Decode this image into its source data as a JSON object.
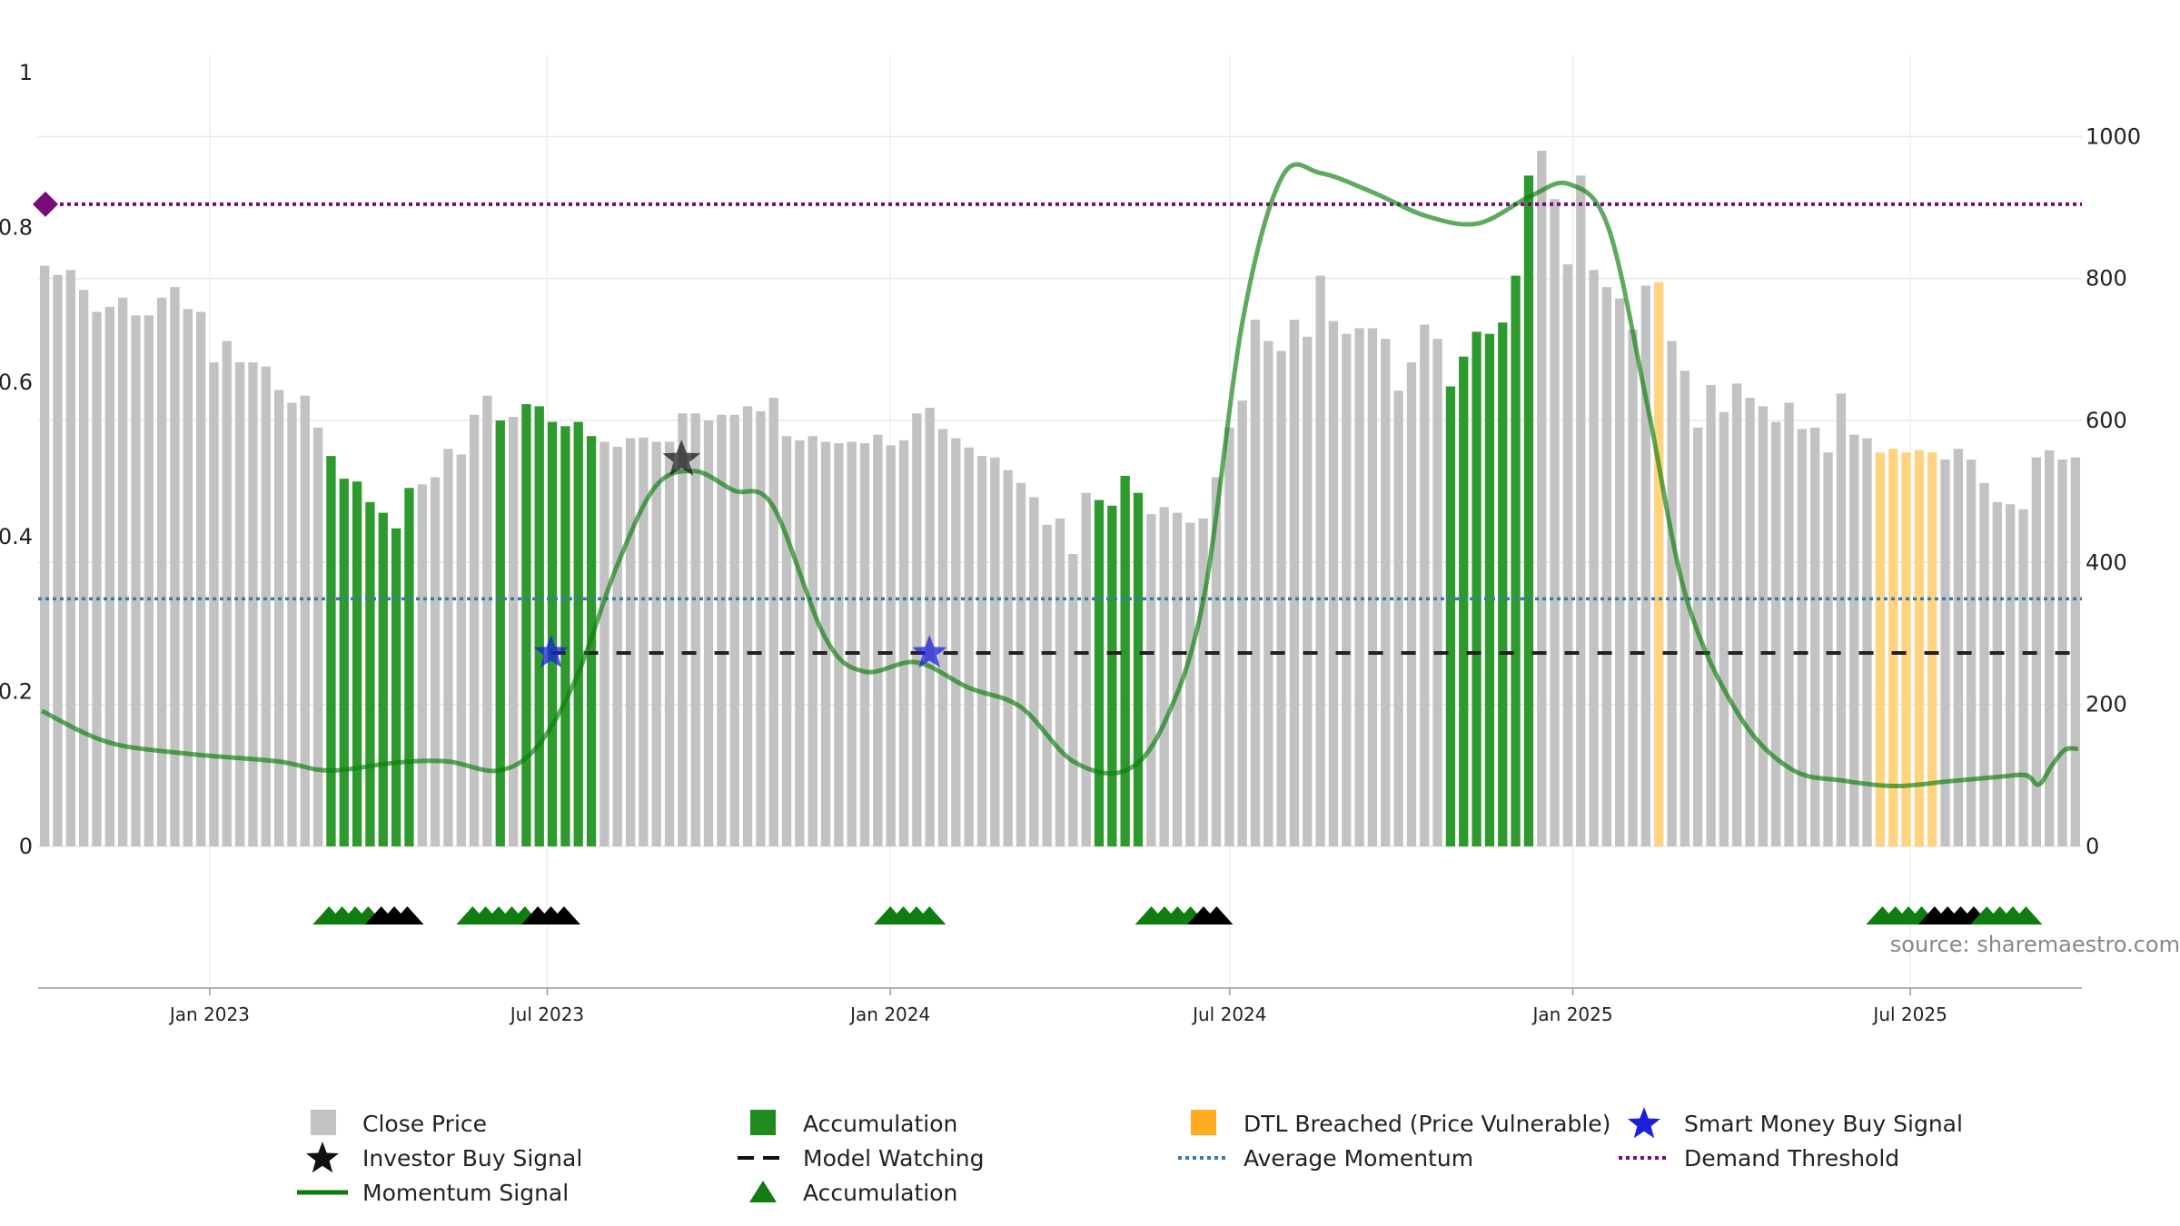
{
  "chart_data": {
    "type": "bar",
    "source_text": "source: sharemaestro.com",
    "left_axis": {
      "ticks": [
        0,
        0.2,
        0.4,
        0.6,
        0.8,
        1
      ],
      "tick_labels": [
        "0",
        "0.2",
        "0.4",
        "0.6",
        "0.8",
        "1"
      ],
      "range": [
        0,
        1
      ]
    },
    "right_axis": {
      "ticks": [
        0,
        200,
        400,
        600,
        800,
        1000
      ],
      "tick_labels": [
        "0",
        "200",
        "400",
        "600",
        "800",
        "1000"
      ],
      "range": [
        0,
        1090
      ]
    },
    "x_axis": {
      "start_date": "2022-10-01",
      "end_date": "2025-10-01",
      "date_labels": [
        {
          "date": "2023-01-01",
          "label": "Jan 2023"
        },
        {
          "date": "2023-07-01",
          "label": "Jul 2023"
        },
        {
          "date": "2024-01-01",
          "label": "Jan 2024"
        },
        {
          "date": "2024-07-01",
          "label": "Jul 2024"
        },
        {
          "date": "2025-01-01",
          "label": "Jan 2025"
        },
        {
          "date": "2025-07-01",
          "label": "Jul 2025"
        }
      ]
    },
    "colors": {
      "close_price": "#c2c2c2",
      "accumulation": "#2e9a2e",
      "dtl_breached": "#ffd37f",
      "momentum": "#0a7d0a",
      "average_momentum": "#3a7aa8",
      "demand_threshold": "#7a0a7a",
      "model_watching": "#222222",
      "smart_money": "#1a22d8",
      "investor_buy": "#111111",
      "accum_triangle": "#0f7d0f"
    },
    "close_price": [
      818,
      805,
      812,
      784,
      753,
      760,
      773,
      748,
      748,
      773,
      788,
      757,
      753,
      682,
      712,
      682,
      682,
      676,
      643,
      625,
      635,
      590,
      550,
      518,
      514,
      485,
      470,
      448,
      505,
      510,
      520,
      560,
      552,
      608,
      635,
      600,
      605,
      623,
      620,
      598,
      592,
      598,
      578,
      570,
      563,
      575,
      576,
      570,
      570,
      610,
      610,
      600,
      608,
      608,
      620,
      613,
      632,
      578,
      572,
      578,
      570,
      568,
      570,
      568,
      580,
      565,
      572,
      610,
      618,
      588,
      575,
      562,
      550,
      548,
      530,
      512,
      492,
      453,
      462,
      412,
      498,
      488,
      480,
      522,
      498,
      468,
      478,
      470,
      456,
      462,
      520,
      590,
      628,
      742,
      712,
      698,
      742,
      718,
      804,
      740,
      722,
      730,
      730,
      715,
      642,
      682,
      735,
      715,
      648,
      690,
      725,
      722,
      738,
      804,
      945,
      980,
      912,
      820,
      945,
      812,
      788,
      772,
      728,
      790,
      795,
      712,
      670,
      590,
      650,
      612,
      652,
      632,
      620,
      598,
      625,
      588,
      590,
      555,
      638,
      580,
      575,
      555,
      560,
      555,
      558,
      555,
      545,
      560,
      545,
      512,
      485,
      482,
      475,
      548,
      558,
      545,
      548
    ],
    "bar_classes": "GGGGGGGGGGGGGGGGGGGGGGAAAAAAAGGGGGGAGAAAAAAGGGGGGGGGGGGGGGGGGGGGGGGGGGGGGGGGGGGGGAAAAGGGGGGGGGGGGGGGGGGGGGGGAAAAAAAGGGGGGGGGDGGGGGGGGGGGGGGGGDDDDDGGGGGGGGGGGGGGGGGGGGGGGGGGGAAAAAAAAAAGAAA",
    "momentum": [
      0.175,
      0.155,
      0.143,
      0.133,
      0.127,
      0.123,
      0.12,
      0.118,
      0.116,
      0.114,
      0.112,
      0.11,
      0.108,
      0.104,
      0.1,
      0.098,
      0.098,
      0.098,
      0.099,
      0.101,
      0.103,
      0.105,
      0.107,
      0.109,
      0.11,
      0.11,
      0.109,
      0.106,
      0.102,
      0.098,
      0.096,
      0.1,
      0.108,
      0.118,
      0.13,
      0.15,
      0.18,
      0.22,
      0.26,
      0.3,
      0.34,
      0.385,
      0.425,
      0.46,
      0.48,
      0.485,
      0.485,
      0.48,
      0.47,
      0.46,
      0.456,
      0.452,
      0.44,
      0.41,
      0.37,
      0.32,
      0.27,
      0.24,
      0.225,
      0.222,
      0.226,
      0.23,
      0.232,
      0.236,
      0.238,
      0.231,
      0.218,
      0.21,
      0.205,
      0.2,
      0.195,
      0.188,
      0.175,
      0.155,
      0.13,
      0.11,
      0.1,
      0.097,
      0.097,
      0.1,
      0.11,
      0.13,
      0.16,
      0.2,
      0.25,
      0.32,
      0.42,
      0.52,
      0.6,
      0.68,
      0.76,
      0.83,
      0.865,
      0.875,
      0.87,
      0.862,
      0.852,
      0.845,
      0.838,
      0.832,
      0.825,
      0.815,
      0.805,
      0.805,
      0.815,
      0.825,
      0.84,
      0.85,
      0.856,
      0.848,
      0.828,
      0.8,
      0.75,
      0.67,
      0.57,
      0.47,
      0.39,
      0.32,
      0.26,
      0.21,
      0.17,
      0.14,
      0.12,
      0.107,
      0.1,
      0.095,
      0.09,
      0.085,
      0.08,
      0.078,
      0.077,
      0.078,
      0.08,
      0.082,
      0.084,
      0.085,
      0.087,
      0.089,
      0.09,
      0.091,
      0.092,
      0.08,
      0.105,
      0.118,
      0.125,
      0.128,
      0.126
    ],
    "momentum_points": [
      {
        "date": "2022-10-03",
        "value": 0.175
      },
      {
        "date": "2022-11-07",
        "value": 0.135
      },
      {
        "date": "2022-12-19",
        "value": 0.12
      },
      {
        "date": "2023-02-06",
        "value": 0.11
      },
      {
        "date": "2023-03-06",
        "value": 0.098
      },
      {
        "date": "2023-04-10",
        "value": 0.108
      },
      {
        "date": "2023-05-08",
        "value": 0.11
      },
      {
        "date": "2023-06-05",
        "value": 0.098
      },
      {
        "date": "2023-06-26",
        "value": 0.13
      },
      {
        "date": "2023-07-17",
        "value": 0.22
      },
      {
        "date": "2023-08-07",
        "value": 0.36
      },
      {
        "date": "2023-08-28",
        "value": 0.465
      },
      {
        "date": "2023-09-18",
        "value": 0.485
      },
      {
        "date": "2023-10-09",
        "value": 0.46
      },
      {
        "date": "2023-10-30",
        "value": 0.44
      },
      {
        "date": "2023-11-27",
        "value": 0.27
      },
      {
        "date": "2023-12-18",
        "value": 0.226
      },
      {
        "date": "2024-01-15",
        "value": 0.238
      },
      {
        "date": "2024-02-12",
        "value": 0.205
      },
      {
        "date": "2024-03-11",
        "value": 0.18
      },
      {
        "date": "2024-04-08",
        "value": 0.11
      },
      {
        "date": "2024-05-06",
        "value": 0.098
      },
      {
        "date": "2024-05-27",
        "value": 0.16
      },
      {
        "date": "2024-06-17",
        "value": 0.32
      },
      {
        "date": "2024-07-08",
        "value": 0.68
      },
      {
        "date": "2024-07-29",
        "value": 0.865
      },
      {
        "date": "2024-08-19",
        "value": 0.87
      },
      {
        "date": "2024-09-16",
        "value": 0.845
      },
      {
        "date": "2024-10-14",
        "value": 0.815
      },
      {
        "date": "2024-11-11",
        "value": 0.805
      },
      {
        "date": "2024-12-09",
        "value": 0.84
      },
      {
        "date": "2024-12-30",
        "value": 0.856
      },
      {
        "date": "2025-01-20",
        "value": 0.8
      },
      {
        "date": "2025-02-10",
        "value": 0.57
      },
      {
        "date": "2025-03-03",
        "value": 0.32
      },
      {
        "date": "2025-03-31",
        "value": 0.17
      },
      {
        "date": "2025-04-28",
        "value": 0.1
      },
      {
        "date": "2025-05-26",
        "value": 0.085
      },
      {
        "date": "2025-06-23",
        "value": 0.078
      },
      {
        "date": "2025-07-21",
        "value": 0.084
      },
      {
        "date": "2025-08-18",
        "value": 0.09
      },
      {
        "date": "2025-09-01",
        "value": 0.092
      },
      {
        "date": "2025-09-08",
        "value": 0.08
      },
      {
        "date": "2025-09-15",
        "value": 0.105
      },
      {
        "date": "2025-09-22",
        "value": 0.125
      },
      {
        "date": "2025-09-29",
        "value": 0.126
      }
    ],
    "average_momentum": 0.32,
    "demand_threshold": 0.83,
    "model_watching": {
      "value": 0.25,
      "start_date": "2023-07-03",
      "end_date": "2025-09-29"
    },
    "smart_money_signals": [
      {
        "date": "2023-07-03",
        "value": 0.25
      },
      {
        "date": "2024-01-22",
        "value": 0.25
      }
    ],
    "investor_buy_signals": [
      {
        "date": "2023-09-11",
        "value": 0.5
      }
    ],
    "triangle_markers": [
      {
        "date": "2023-03-06",
        "color": "green"
      },
      {
        "date": "2023-03-13",
        "color": "green"
      },
      {
        "date": "2023-03-20",
        "color": "green"
      },
      {
        "date": "2023-03-27",
        "color": "green"
      },
      {
        "date": "2023-04-03",
        "color": "black"
      },
      {
        "date": "2023-04-10",
        "color": "black"
      },
      {
        "date": "2023-04-17",
        "color": "black"
      },
      {
        "date": "2023-05-22",
        "color": "green"
      },
      {
        "date": "2023-05-29",
        "color": "green"
      },
      {
        "date": "2023-06-05",
        "color": "green"
      },
      {
        "date": "2023-06-12",
        "color": "green"
      },
      {
        "date": "2023-06-19",
        "color": "green"
      },
      {
        "date": "2023-06-26",
        "color": "black"
      },
      {
        "date": "2023-07-03",
        "color": "black"
      },
      {
        "date": "2023-07-10",
        "color": "black"
      },
      {
        "date": "2024-01-01",
        "color": "green"
      },
      {
        "date": "2024-01-08",
        "color": "green"
      },
      {
        "date": "2024-01-15",
        "color": "green"
      },
      {
        "date": "2024-01-22",
        "color": "green"
      },
      {
        "date": "2024-05-20",
        "color": "green"
      },
      {
        "date": "2024-05-27",
        "color": "green"
      },
      {
        "date": "2024-06-03",
        "color": "green"
      },
      {
        "date": "2024-06-10",
        "color": "green"
      },
      {
        "date": "2024-06-17",
        "color": "black"
      },
      {
        "date": "2024-06-24",
        "color": "black"
      },
      {
        "date": "2025-06-16",
        "color": "green"
      },
      {
        "date": "2025-06-23",
        "color": "green"
      },
      {
        "date": "2025-06-30",
        "color": "green"
      },
      {
        "date": "2025-07-07",
        "color": "green"
      },
      {
        "date": "2025-07-14",
        "color": "black"
      },
      {
        "date": "2025-07-21",
        "color": "black"
      },
      {
        "date": "2025-07-28",
        "color": "black"
      },
      {
        "date": "2025-08-04",
        "color": "black"
      },
      {
        "date": "2025-08-11",
        "color": "green"
      },
      {
        "date": "2025-08-18",
        "color": "green"
      },
      {
        "date": "2025-08-25",
        "color": "green"
      },
      {
        "date": "2025-09-01",
        "color": "green"
      }
    ],
    "legend": [
      {
        "key": "close_price",
        "label": "Close Price",
        "symbol": "square-gray"
      },
      {
        "key": "investor_buy",
        "label": "Investor Buy Signal",
        "symbol": "star-black"
      },
      {
        "key": "momentum",
        "label": "Momentum Signal",
        "symbol": "line-green"
      },
      {
        "key": "accumulation",
        "label": "Accumulation",
        "symbol": "square-green"
      },
      {
        "key": "model_watching",
        "label": "Model Watching",
        "symbol": "dash-black"
      },
      {
        "key": "accum_triangle",
        "label": "Accumulation",
        "symbol": "triangle-green"
      },
      {
        "key": "dtl_breached",
        "label": "DTL Breached (Price Vulnerable)",
        "symbol": "square-orange"
      },
      {
        "key": "average_momentum",
        "label": "Average Momentum",
        "symbol": "dotted-blue"
      },
      {
        "key": "smart_money",
        "label": "Smart Money Buy Signal",
        "symbol": "star-blue"
      },
      {
        "key": "demand_threshold",
        "label": "Demand Threshold",
        "symbol": "dotted-purple"
      }
    ]
  }
}
